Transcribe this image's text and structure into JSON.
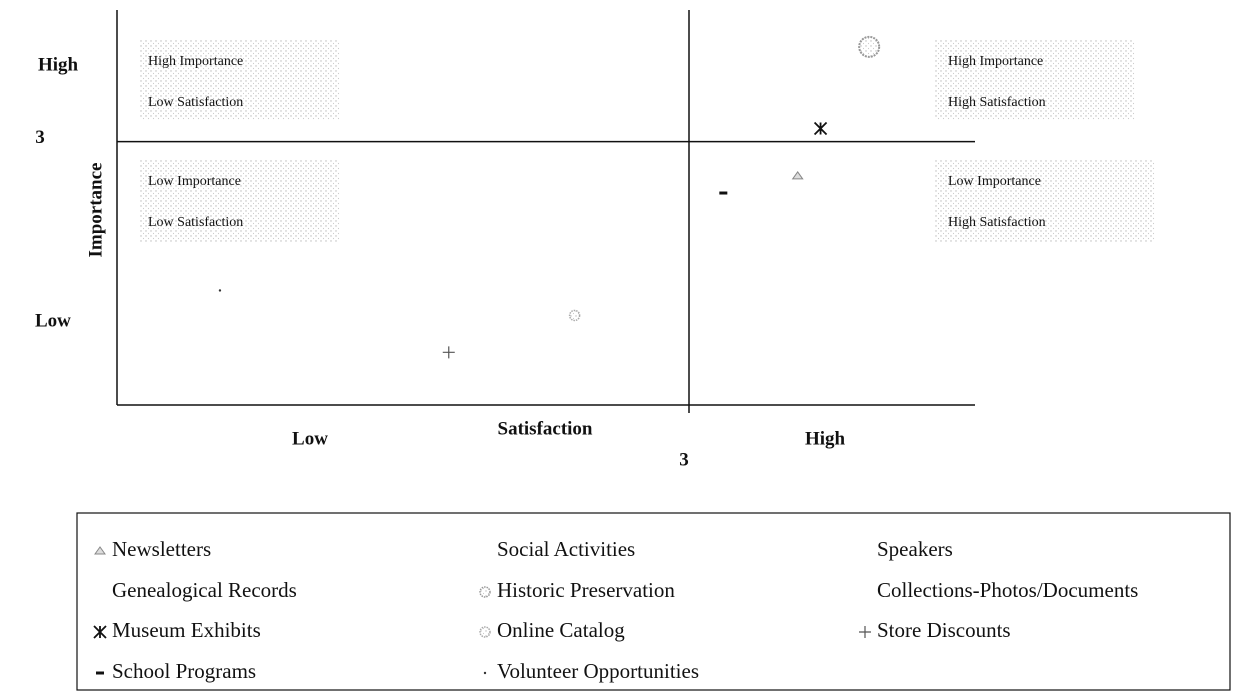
{
  "chart_data": {
    "type": "scatter",
    "x_label": "Satisfaction",
    "y_label": "Importance",
    "xlim": [
      1,
      4
    ],
    "ylim": [
      1,
      4
    ],
    "xticks": [
      3
    ],
    "yticks": [
      3
    ],
    "axis_end_labels": {
      "y_high": "High",
      "y_low": "Low",
      "x_low": "Low",
      "x_high": "High"
    },
    "quadrants": [
      [
        "High Importance",
        "Low Satisfaction"
      ],
      [
        "High Importance",
        "High Satisfaction"
      ],
      [
        "Low Importance",
        "Low Satisfaction"
      ],
      [
        "Low Importance",
        "High Satisfaction"
      ]
    ],
    "legend": "bottom",
    "series": [
      {
        "name": "Newsletters",
        "marker": "triangle",
        "color": "#888888",
        "x": [
          3.38
        ],
        "y": [
          2.74
        ]
      },
      {
        "name": "Social Activities",
        "marker": "none",
        "color": "#888888",
        "x": [
          null
        ],
        "y": [
          null
        ]
      },
      {
        "name": "Speakers",
        "marker": "none",
        "color": "#888888",
        "x": [
          null
        ],
        "y": [
          null
        ]
      },
      {
        "name": "Genealogical Records",
        "marker": "none",
        "color": "#888888",
        "x": [
          null
        ],
        "y": [
          null
        ]
      },
      {
        "name": "Historic Preservation",
        "marker": "big-circle",
        "color": "#999999",
        "x": [
          3.63
        ],
        "y": [
          3.72
        ]
      },
      {
        "name": "Collections-Photos/Documents",
        "marker": "none",
        "color": "#888888",
        "x": [
          null
        ],
        "y": [
          null
        ]
      },
      {
        "name": "Museum Exhibits",
        "marker": "asterisk",
        "color": "#111111",
        "x": [
          3.46
        ],
        "y": [
          3.1
        ]
      },
      {
        "name": "Online Catalog",
        "marker": "circle",
        "color": "#aaaaaa",
        "x": [
          2.6
        ],
        "y": [
          1.68
        ]
      },
      {
        "name": "Store Discounts",
        "marker": "plus",
        "color": "#555555",
        "x": [
          2.16
        ],
        "y": [
          1.4
        ]
      },
      {
        "name": "School Programs",
        "marker": "dash",
        "color": "#111111",
        "x": [
          3.12
        ],
        "y": [
          2.61
        ]
      },
      {
        "name": "Volunteer Opportunities",
        "marker": "dot",
        "color": "#333333",
        "x": [
          1.36
        ],
        "y": [
          1.87
        ]
      }
    ]
  }
}
